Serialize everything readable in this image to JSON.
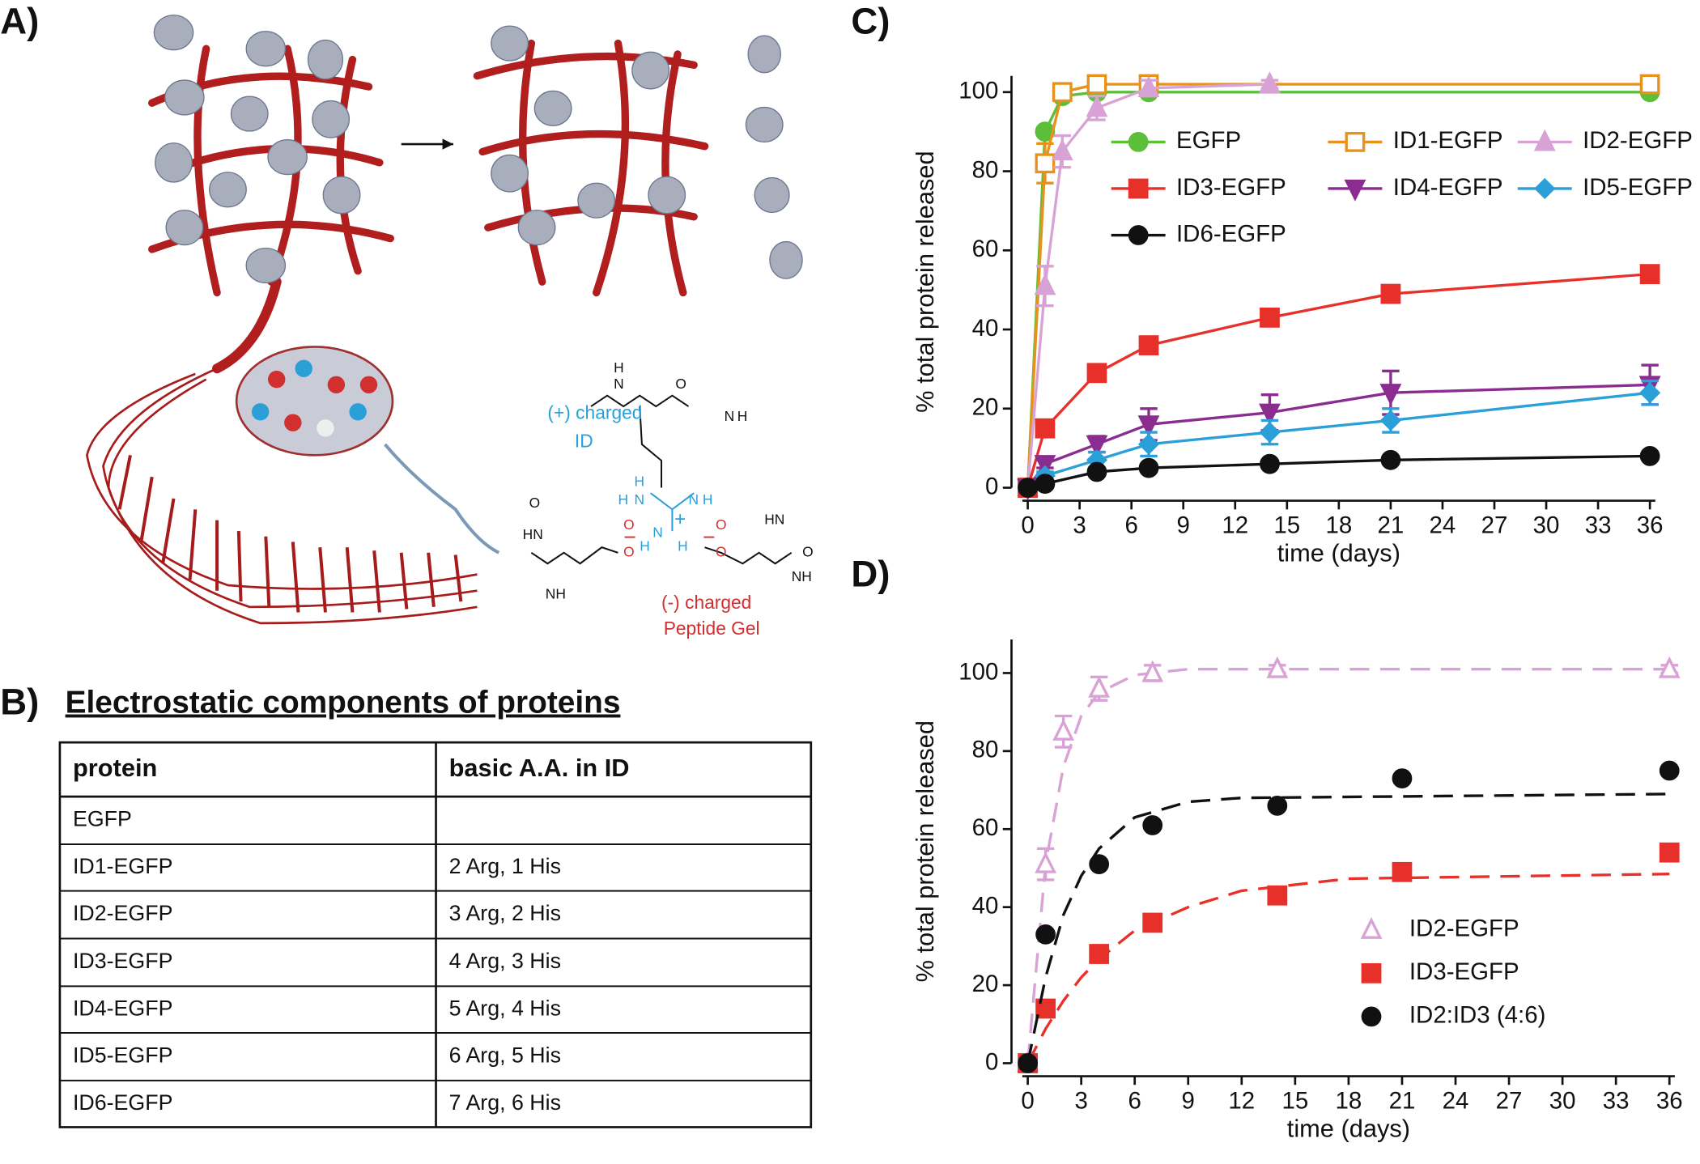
{
  "panels": {
    "a": "A)",
    "b": "B)"
  },
  "illustration": {
    "pos_label": "(+) charged",
    "pos_label2": "ID",
    "neg_label": "(-) charged",
    "neg_label2": "Peptide Gel",
    "atoms": [
      "H",
      "N",
      "O",
      "N",
      "H",
      "H",
      "N",
      "H",
      "N",
      "H",
      "+",
      "H",
      "N",
      "H",
      "O",
      "O",
      "O",
      "O",
      "HN",
      "NH",
      "HN",
      "NH",
      "O",
      "O",
      "−",
      "−"
    ]
  },
  "table": {
    "title": "Electrostatic components of proteins",
    "header": [
      "protein",
      "basic A.A. in ID"
    ],
    "rows": [
      [
        "EGFP",
        ""
      ],
      [
        "ID1-EGFP",
        "2 Arg, 1 His"
      ],
      [
        "ID2-EGFP",
        "3 Arg, 2 His"
      ],
      [
        "ID3-EGFP",
        "4 Arg, 3 His"
      ],
      [
        "ID4-EGFP",
        "5 Arg, 4 His"
      ],
      [
        "ID5-EGFP",
        "6 Arg, 5 His"
      ],
      [
        "ID6-EGFP",
        "7 Arg, 6 His"
      ]
    ]
  },
  "chart_data": [
    {
      "type": "line",
      "label": "C)",
      "ylabel": "% total protein released",
      "xlabel": "time (days)",
      "xlim": [
        0,
        36
      ],
      "xticks": [
        0,
        3,
        6,
        9,
        12,
        15,
        18,
        21,
        24,
        27,
        30,
        33,
        36
      ],
      "ylim": [
        0,
        100
      ],
      "yticks": [
        0,
        20,
        40,
        60,
        80,
        100
      ],
      "series": [
        {
          "name": "EGFP",
          "color": "#5cbf3a",
          "marker": "circle",
          "x": [
            0,
            1,
            2,
            4,
            7,
            36
          ],
          "values": [
            0,
            90,
            99,
            100,
            100,
            100
          ]
        },
        {
          "name": "ID1-EGFP",
          "color": "#e8921e",
          "marker": "square-open",
          "x": [
            0,
            1,
            2,
            4,
            7,
            36
          ],
          "values": [
            0,
            82,
            100,
            102,
            102,
            102
          ],
          "errors": [
            0,
            5,
            1,
            1,
            1,
            1
          ]
        },
        {
          "name": "ID2-EGFP",
          "color": "#d9a2d6",
          "marker": "triangle-up",
          "x": [
            0,
            1,
            2,
            4,
            7,
            14
          ],
          "values": [
            0,
            51,
            85,
            96,
            101,
            102
          ],
          "errors": [
            0,
            5,
            4,
            3,
            2,
            1
          ]
        },
        {
          "name": "ID3-EGFP",
          "color": "#e8302a",
          "marker": "square",
          "x": [
            0,
            1,
            4,
            7,
            14,
            21,
            36
          ],
          "values": [
            0,
            15,
            29,
            36,
            43,
            49,
            54
          ]
        },
        {
          "name": "ID4-EGFP",
          "color": "#8b2c91",
          "marker": "triangle-down",
          "x": [
            0,
            1,
            4,
            7,
            14,
            21,
            36
          ],
          "values": [
            0,
            6,
            11,
            16,
            19,
            24,
            26
          ],
          "errors": [
            0,
            1,
            2,
            4,
            4.5,
            5.5,
            5
          ]
        },
        {
          "name": "ID5-EGFP",
          "color": "#2a9fd8",
          "marker": "diamond",
          "x": [
            0,
            1,
            4,
            7,
            14,
            21,
            36
          ],
          "values": [
            0,
            3,
            7,
            11,
            14,
            17,
            24
          ],
          "errors": [
            0,
            1,
            2,
            3,
            3,
            3,
            3
          ]
        },
        {
          "name": "ID6-EGFP",
          "color": "#111111",
          "marker": "circle",
          "x": [
            0,
            1,
            4,
            7,
            14,
            21,
            36
          ],
          "values": [
            0,
            1,
            4,
            5,
            6,
            7,
            8
          ]
        }
      ]
    },
    {
      "type": "scatter",
      "label": "D)",
      "ylabel": "% total protein released",
      "xlabel": "time (days)",
      "xlim": [
        0,
        36
      ],
      "xticks": [
        0,
        3,
        6,
        9,
        12,
        15,
        18,
        21,
        24,
        27,
        30,
        33,
        36
      ],
      "ylim": [
        0,
        100
      ],
      "yticks": [
        0,
        20,
        40,
        60,
        80,
        100
      ],
      "series": [
        {
          "name": "ID2-EGFP",
          "color": "#d9a2d6",
          "marker": "triangle-open",
          "x": [
            0,
            1,
            2,
            4,
            7,
            14,
            36
          ],
          "values": [
            0,
            51,
            85,
            96,
            100,
            101,
            101
          ],
          "errors": [
            0,
            4,
            4,
            3,
            2,
            1,
            1
          ],
          "fit": {
            "x": [
              0,
              1,
              2,
              3,
              4,
              6,
              9,
              36
            ],
            "values": [
              0,
              51,
              76,
              89,
              95,
              99.5,
              101,
              101
            ]
          }
        },
        {
          "name": "ID3-EGFP",
          "color": "#e8302a",
          "marker": "square",
          "x": [
            0,
            1,
            4,
            7,
            14,
            21,
            36
          ],
          "values": [
            0,
            14,
            28,
            36,
            43,
            49,
            54
          ],
          "fit": {
            "x": [
              0,
              1,
              2,
              3,
              4,
              6,
              9,
              12,
              18,
              36
            ],
            "values": [
              0,
              8.8,
              16,
              22,
              26.7,
              34,
              40,
              44.2,
              47.3,
              48.5
            ]
          }
        },
        {
          "name": "ID2:ID3 (4:6)",
          "color": "#111111",
          "marker": "circle",
          "x": [
            0,
            1,
            4,
            7,
            14,
            21,
            36
          ],
          "values": [
            0,
            33,
            51,
            61,
            66,
            73,
            75
          ],
          "fit": {
            "x": [
              0,
              1,
              2,
              3,
              4,
              6,
              9,
              12,
              36
            ],
            "values": [
              0,
              22,
              38,
              48,
              55,
              63,
              67,
              68,
              69
            ]
          }
        }
      ]
    }
  ]
}
